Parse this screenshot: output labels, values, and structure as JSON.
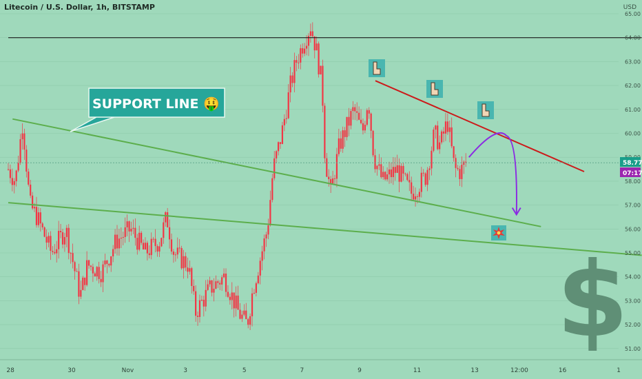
{
  "header": {
    "symbol_line": "Litecoin / U.S. Dollar, 1h, BITSTAMP",
    "currency": "USD"
  },
  "price_badge": {
    "price": "58.77",
    "countdown": "07:17"
  },
  "annotation": {
    "label": "SUPPORT LINE 🤑"
  },
  "icons": {
    "pointer": "backhand-index-pointing-down-icon",
    "collision": "collision-icon",
    "dollar": "dollar-sign-icon"
  },
  "colors": {
    "background": "#9fd9bb",
    "candle": "#f23645",
    "support_line": "#5cae4c",
    "resistance_line": "#cc1a1a",
    "projection_arrow": "#8b2be2",
    "horizontal_line": "#1a1a1a",
    "label_fill": "#26a69a",
    "badge_price": "#1a9e8a",
    "badge_time": "#9c27b0"
  },
  "chart_data": {
    "type": "candlestick",
    "y_ticks": [
      "51.00",
      "52.00",
      "53.00",
      "54.00",
      "55.00",
      "56.00",
      "57.00",
      "58.00",
      "59.00",
      "60.00",
      "61.00",
      "62.00",
      "63.00",
      "64.00",
      "65.00"
    ],
    "x_ticks": [
      "28",
      "30",
      "Nov",
      "3",
      "5",
      "7",
      "9",
      "11",
      "13",
      "12:00",
      "16",
      "1"
    ],
    "ylim": [
      50.5,
      65.6
    ],
    "price_path": [
      [
        0.0,
        58.5
      ],
      [
        0.5,
        58.0
      ],
      [
        1.0,
        60.5
      ],
      [
        1.5,
        57.0
      ],
      [
        2.0,
        56.5
      ],
      [
        3.0,
        55.0
      ],
      [
        4.0,
        56.0
      ],
      [
        5.0,
        53.2
      ],
      [
        5.5,
        54.5
      ],
      [
        6.5,
        54.2
      ],
      [
        7.5,
        55.5
      ],
      [
        8.5,
        56.0
      ],
      [
        9.5,
        55.0
      ],
      [
        10.5,
        55.5
      ],
      [
        11.0,
        56.5
      ],
      [
        11.5,
        55.0
      ],
      [
        12.5,
        54.5
      ],
      [
        13.0,
        52.5
      ],
      [
        14.0,
        53.5
      ],
      [
        15.0,
        54.0
      ],
      [
        16.0,
        52.5
      ],
      [
        16.6,
        52.0
      ],
      [
        17.0,
        53.5
      ],
      [
        17.6,
        55.0
      ],
      [
        18.0,
        56.0
      ],
      [
        18.4,
        58.5
      ],
      [
        19.0,
        60.0
      ],
      [
        19.6,
        62.0
      ],
      [
        20.0,
        63.0
      ],
      [
        20.5,
        63.8
      ],
      [
        21.0,
        64.5
      ],
      [
        21.4,
        63.5
      ],
      [
        21.8,
        62.0
      ],
      [
        22.0,
        59.0
      ],
      [
        22.4,
        57.5
      ],
      [
        23.0,
        59.5
      ],
      [
        24.0,
        61.0
      ],
      [
        24.6,
        60.0
      ],
      [
        25.0,
        61.5
      ],
      [
        25.4,
        59.0
      ],
      [
        26.0,
        58.0
      ],
      [
        27.0,
        58.5
      ],
      [
        28.0,
        57.5
      ],
      [
        29.0,
        58.2
      ],
      [
        29.6,
        60.0
      ],
      [
        30.0,
        59.5
      ],
      [
        30.5,
        60.5
      ],
      [
        31.0,
        58.5
      ],
      [
        31.4,
        58.4
      ],
      [
        31.8,
        58.8
      ]
    ],
    "trend_lines": [
      {
        "name": "upper support",
        "points": [
          [
            0.3,
            60.6
          ],
          [
            37.0,
            56.1
          ]
        ]
      },
      {
        "name": "lower support",
        "points": [
          [
            0.0,
            57.1
          ],
          [
            44.0,
            54.9
          ]
        ]
      },
      {
        "name": "resistance",
        "points": [
          [
            25.5,
            62.2
          ],
          [
            40.0,
            58.4
          ]
        ]
      },
      {
        "name": "horizontal",
        "points": [
          [
            0.0,
            64.0
          ],
          [
            44.0,
            64.0
          ]
        ]
      }
    ],
    "projection": {
      "from": [
        32.0,
        59.0
      ],
      "peak": [
        34.6,
        59.9
      ],
      "to": [
        35.3,
        56.6
      ]
    },
    "current_price": 58.77
  }
}
